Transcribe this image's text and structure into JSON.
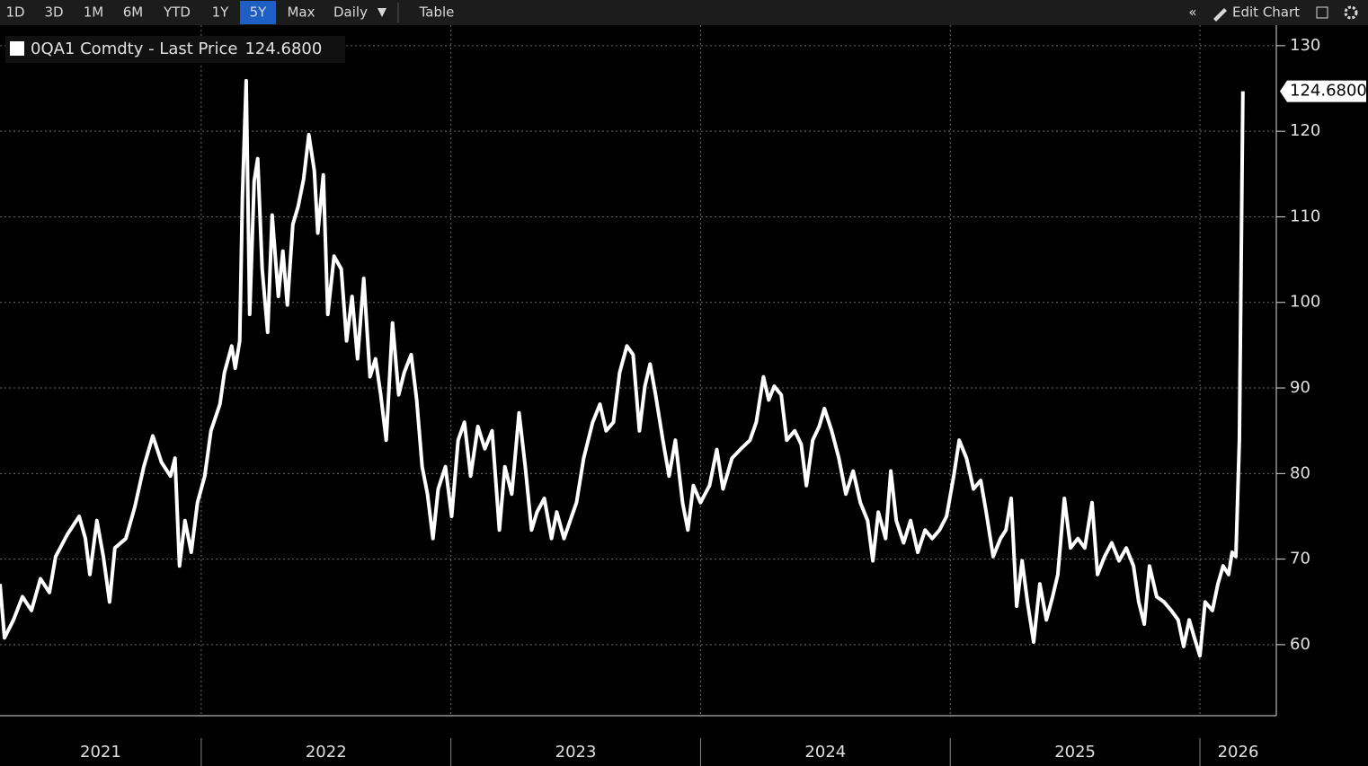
{
  "toolbar": {
    "ranges": [
      "1D",
      "3D",
      "1M",
      "6M",
      "YTD",
      "1Y",
      "5Y",
      "Max"
    ],
    "active": "5Y",
    "frequency": "Daily",
    "table": "Table",
    "edit": "Edit Chart"
  },
  "chart_data": {
    "type": "line",
    "x": [
      2021.194,
      2021.212,
      2021.248,
      2021.284,
      2021.32,
      2021.356,
      2021.392,
      2021.417,
      2021.464,
      2021.511,
      2021.536,
      2021.554,
      2021.582,
      2021.608,
      2021.633,
      2021.654,
      2021.698,
      2021.734,
      2021.77,
      2021.806,
      2021.841,
      2021.877,
      2021.895,
      2021.913,
      2021.935,
      2021.96,
      2021.985,
      2022.014,
      2022.039,
      2022.075,
      2022.093,
      2022.122,
      2022.136,
      2022.154,
      2022.165,
      2022.18,
      2022.194,
      2022.212,
      2022.226,
      2022.244,
      2022.266,
      2022.284,
      2022.309,
      2022.327,
      2022.345,
      2022.367,
      2022.388,
      2022.41,
      2022.431,
      2022.453,
      2022.467,
      2022.489,
      2022.507,
      2022.532,
      2022.561,
      2022.582,
      2022.604,
      2022.626,
      2022.651,
      2022.676,
      2022.698,
      2022.719,
      2022.741,
      2022.766,
      2022.791,
      2022.813,
      2022.841,
      2022.863,
      2022.885,
      2022.906,
      2022.928,
      2022.949,
      2022.978,
      2023.003,
      2023.029,
      2023.054,
      2023.079,
      2023.108,
      2023.136,
      2023.165,
      2023.194,
      2023.216,
      2023.244,
      2023.273,
      2023.298,
      2023.323,
      2023.345,
      2023.374,
      2023.403,
      2023.424,
      2023.453,
      2023.478,
      2023.503,
      2023.532,
      2023.568,
      2023.597,
      2023.622,
      2023.651,
      2023.676,
      2023.705,
      2023.73,
      2023.755,
      2023.777,
      2023.798,
      2023.82,
      2023.849,
      2023.874,
      2023.899,
      2023.928,
      2023.949,
      2023.971,
      2024.0,
      2024.036,
      2024.065,
      2024.09,
      2024.126,
      2024.162,
      2024.198,
      2024.223,
      2024.252,
      2024.273,
      2024.295,
      2024.323,
      2024.345,
      2024.377,
      2024.403,
      2024.424,
      2024.449,
      2024.475,
      2024.496,
      2024.525,
      2024.554,
      2024.582,
      2024.611,
      2024.64,
      2024.669,
      2024.69,
      2024.712,
      2024.741,
      2024.762,
      2024.784,
      2024.813,
      2024.841,
      2024.87,
      2024.899,
      2024.928,
      2024.957,
      2024.985,
      2025.014,
      2025.036,
      2025.065,
      2025.093,
      2025.122,
      2025.144,
      2025.172,
      2025.201,
      2025.223,
      2025.244,
      2025.266,
      2025.288,
      2025.309,
      2025.334,
      2025.359,
      2025.385,
      2025.41,
      2025.431,
      2025.457,
      2025.482,
      2025.511,
      2025.539,
      2025.568,
      2025.59,
      2025.618,
      2025.647,
      2025.676,
      2025.705,
      2025.734,
      2025.755,
      2025.777,
      2025.798,
      2025.827,
      2025.856,
      2025.885,
      2025.913,
      2025.935,
      2025.957,
      2025.978,
      2026.0,
      2026.021,
      2026.05,
      2026.072,
      2026.093,
      2026.115,
      2026.129,
      2026.144,
      2026.158,
      2026.172
    ],
    "series": [
      {
        "name": "0QA1 Comdty - Last Price",
        "color": "#ffffff",
        "values": [
          67.1,
          60.8,
          62.9,
          65.6,
          64.0,
          67.7,
          66.1,
          70.3,
          72.9,
          75.0,
          72.4,
          68.2,
          74.5,
          70.3,
          65.0,
          71.3,
          72.4,
          76.1,
          80.8,
          84.4,
          81.3,
          79.7,
          81.8,
          69.2,
          74.5,
          70.8,
          76.6,
          79.7,
          85.0,
          88.1,
          91.8,
          94.9,
          92.3,
          95.5,
          112.3,
          125.9,
          98.6,
          114.2,
          116.8,
          103.9,
          96.5,
          110.2,
          100.7,
          106.0,
          99.7,
          109.1,
          111.2,
          114.4,
          119.6,
          115.4,
          108.1,
          114.9,
          98.6,
          105.4,
          103.9,
          95.5,
          100.7,
          93.4,
          102.8,
          91.3,
          93.4,
          89.2,
          83.9,
          97.6,
          89.2,
          91.8,
          93.9,
          88.6,
          80.8,
          77.6,
          72.4,
          78.2,
          80.8,
          75.0,
          83.9,
          86.0,
          79.7,
          85.5,
          82.9,
          85.0,
          73.4,
          80.8,
          77.6,
          87.1,
          80.8,
          73.4,
          75.5,
          77.1,
          72.4,
          75.5,
          72.4,
          74.5,
          76.6,
          81.8,
          86.0,
          88.1,
          85.0,
          86.0,
          91.8,
          94.9,
          93.9,
          85.0,
          90.2,
          92.8,
          89.2,
          83.9,
          79.7,
          83.9,
          76.6,
          73.4,
          78.6,
          76.6,
          78.6,
          82.8,
          78.2,
          81.8,
          82.9,
          83.9,
          86.0,
          91.3,
          88.6,
          90.2,
          89.2,
          83.9,
          85.0,
          83.4,
          78.6,
          83.9,
          85.5,
          87.6,
          85.0,
          81.8,
          77.6,
          80.3,
          76.6,
          74.5,
          69.8,
          75.5,
          72.4,
          80.3,
          74.5,
          71.9,
          74.5,
          70.8,
          73.4,
          72.4,
          73.4,
          75.0,
          79.7,
          83.9,
          81.8,
          78.2,
          79.2,
          75.5,
          70.3,
          72.4,
          73.4,
          77.1,
          64.5,
          69.8,
          65.0,
          60.3,
          67.1,
          62.9,
          65.6,
          68.2,
          77.1,
          71.3,
          72.4,
          71.3,
          76.6,
          68.2,
          70.3,
          71.9,
          69.8,
          71.3,
          69.2,
          65.0,
          62.4,
          69.2,
          65.6,
          65.0,
          64.0,
          62.9,
          59.8,
          62.9,
          60.8,
          58.7,
          65.0,
          64.0,
          67.1,
          69.2,
          68.2,
          70.8,
          70.3,
          83.9,
          124.68
        ]
      }
    ],
    "last_price": {
      "value": 124.68,
      "label": "124.6800"
    },
    "xlim": [
      2021.194,
      2026.306
    ],
    "xticks": [
      2021,
      2022,
      2023,
      2024,
      2025,
      2026
    ],
    "ylim": [
      51.7,
      132.4
    ],
    "yticks": [
      60,
      70,
      80,
      90,
      100,
      110,
      120,
      130
    ],
    "grid": true
  }
}
